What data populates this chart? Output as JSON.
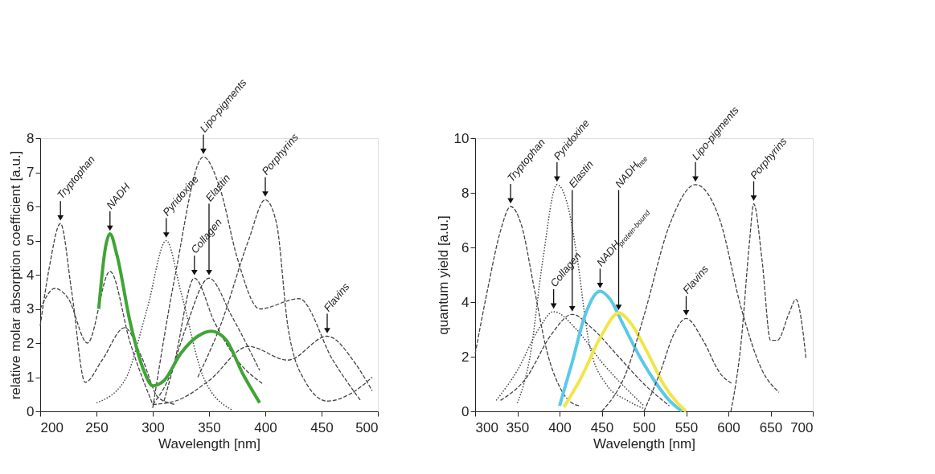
{
  "chart_data": [
    {
      "type": "line",
      "xlabel": "Wavelength [nm]",
      "ylabel": "relative molar absorption coefficient  [a.u.]",
      "xlim": [
        200,
        500
      ],
      "ylim": [
        0,
        8
      ],
      "xticks": [
        200,
        250,
        300,
        350,
        400,
        450,
        500
      ],
      "yticks": [
        0,
        1,
        2,
        3,
        4,
        5,
        6,
        7,
        8
      ],
      "grid": false,
      "series": [
        {
          "name": "Tryptophan",
          "color": "#444444",
          "line_style": "dashed",
          "x": [
            200,
            208,
            218,
            228,
            240,
            255,
            275,
            290,
            305,
            320
          ],
          "values": [
            2.5,
            4.2,
            5.5,
            3.5,
            0.85,
            1.5,
            2.45,
            1.6,
            0.4,
            0.2
          ]
        },
        {
          "color": "#444444",
          "line_style": "dashed",
          "x": [
            200,
            213,
            225,
            242,
            262,
            280,
            300
          ],
          "values": [
            3.0,
            3.6,
            3.3,
            2.0,
            4.1,
            2.0,
            0.2
          ]
        },
        {
          "name": "Collagen",
          "color": "#444444",
          "line_style": "dashed",
          "x": [
            300,
            318,
            337,
            355,
            375,
            398
          ],
          "values": [
            0.2,
            1.3,
            3.9,
            2.6,
            1.5,
            0.8
          ]
        },
        {
          "name": "Elastin",
          "color": "#444444",
          "line_style": "dashed",
          "x": [
            310,
            330,
            350,
            370,
            395
          ],
          "values": [
            0.3,
            2.5,
            3.9,
            2.8,
            1.2
          ]
        },
        {
          "name": "Flavins",
          "color": "#444444",
          "line_style": "dashed",
          "x": [
            300,
            320,
            350,
            385,
            420,
            455,
            480,
            495
          ],
          "values": [
            0.2,
            0.3,
            0.9,
            1.9,
            1.5,
            2.2,
            1.4,
            0.6
          ]
        },
        {
          "name": "Pyridoxine",
          "color": "#444444",
          "line_style": "dotted",
          "x": [
            250,
            275,
            295,
            312,
            325,
            345,
            370
          ],
          "values": [
            0.25,
            0.9,
            3.0,
            5.0,
            3.5,
            1.0,
            0.05
          ]
        },
        {
          "name": "Lipo-pigments",
          "color": "#444444",
          "line_style": "dashed",
          "x": [
            300,
            320,
            345,
            360,
            375,
            395,
            430,
            460,
            485
          ],
          "values": [
            0.1,
            4.0,
            7.45,
            6.5,
            4.5,
            3.0,
            3.3,
            1.5,
            0.3
          ]
        },
        {
          "name": "Porphyrins",
          "color": "#444444",
          "line_style": "dashed",
          "x": [
            340,
            360,
            385,
            400,
            410,
            420,
            435,
            455,
            475,
            495
          ],
          "values": [
            1.0,
            2.5,
            5.0,
            6.2,
            5.5,
            2.5,
            0.9,
            0.3,
            0.5,
            1.0
          ]
        },
        {
          "name": "NADH",
          "color": "#3fa535",
          "line_style": "solid",
          "x": [
            252,
            258,
            262,
            268,
            280,
            292,
            300,
            310,
            325,
            340,
            352,
            365,
            380,
            395
          ],
          "values": [
            3.0,
            4.8,
            5.2,
            4.6,
            2.6,
            1.2,
            0.75,
            0.9,
            1.7,
            2.2,
            2.35,
            2.1,
            1.1,
            0.25
          ]
        }
      ]
    },
    {
      "type": "line",
      "xlabel": "Wavelength [nm]",
      "ylabel": "quantum yield [a.u.]",
      "xlim": [
        300,
        700
      ],
      "ylim": [
        0,
        10
      ],
      "xticks": [
        300,
        350,
        400,
        450,
        500,
        550,
        600,
        650,
        700
      ],
      "yticks": [
        0,
        2,
        4,
        6,
        8,
        10
      ],
      "grid": false,
      "series": [
        {
          "name": "Tryptophan",
          "color": "#444444",
          "line_style": "dashed",
          "x": [
            300,
            315,
            330,
            342,
            355,
            370,
            385,
            400,
            415,
            425
          ],
          "values": [
            2.1,
            4.5,
            6.6,
            7.5,
            6.8,
            4.5,
            2.2,
            0.9,
            0.3,
            0.2
          ]
        },
        {
          "name": "Pyridoxine",
          "color": "#444444",
          "line_style": "dotted",
          "x": [
            350,
            365,
            380,
            397,
            410,
            420,
            435,
            455,
            480,
            500
          ],
          "values": [
            0.3,
            2.0,
            5.5,
            8.3,
            7.5,
            5.8,
            2.5,
            1.0,
            0.4,
            0.1
          ]
        },
        {
          "name": "Collagen",
          "color": "#444444",
          "line_style": "dotted",
          "x": [
            325,
            350,
            375,
            393,
            420,
            450,
            480,
            500
          ],
          "values": [
            0.4,
            1.5,
            3.0,
            3.65,
            3.0,
            1.8,
            0.8,
            0.2
          ]
        },
        {
          "name": "Elastin",
          "color": "#444444",
          "line_style": "dashed",
          "x": [
            330,
            360,
            390,
            415,
            440,
            470,
            500,
            530
          ],
          "values": [
            0.4,
            1.2,
            2.8,
            3.55,
            3.0,
            2.0,
            1.0,
            0.2
          ]
        },
        {
          "name": "NADH$_{protein-bound}$",
          "color": "#5bc8e8",
          "line_style": "solid",
          "x": [
            400,
            415,
            430,
            448,
            460,
            475,
            495,
            515,
            530,
            545
          ],
          "values": [
            0.2,
            1.8,
            3.5,
            4.4,
            4.1,
            3.2,
            2.0,
            1.0,
            0.4,
            0.0
          ]
        },
        {
          "name": "NADH$_{free}$",
          "color": "#f2e54a",
          "line_style": "solid",
          "x": [
            405,
            425,
            450,
            470,
            485,
            505,
            525,
            540,
            550
          ],
          "values": [
            0.15,
            1.2,
            2.8,
            3.6,
            3.2,
            2.1,
            0.9,
            0.3,
            0.0
          ]
        },
        {
          "name": "Lipo-pigments",
          "color": "#444444",
          "line_style": "dashed",
          "x": [
            450,
            480,
            500,
            530,
            561,
            590,
            615,
            640,
            660
          ],
          "values": [
            0.0,
            1.5,
            3.5,
            6.8,
            8.3,
            7.0,
            3.8,
            1.5,
            0.7
          ]
        },
        {
          "name": "Flavins",
          "color": "#444444",
          "line_style": "dashed",
          "x": [
            500,
            520,
            535,
            550,
            570,
            590,
            605
          ],
          "values": [
            0.0,
            1.5,
            2.8,
            3.4,
            2.6,
            1.4,
            1.0
          ]
        },
        {
          "name": "Porphyrins",
          "color": "#444444",
          "line_style": "dashed",
          "x": [
            603,
            615,
            625,
            630,
            640,
            650,
            658,
            672,
            680,
            688,
            692
          ],
          "values": [
            0.0,
            2.5,
            6.2,
            7.6,
            5.5,
            2.6,
            2.6,
            3.6,
            4.1,
            3.0,
            1.9
          ]
        }
      ]
    }
  ]
}
